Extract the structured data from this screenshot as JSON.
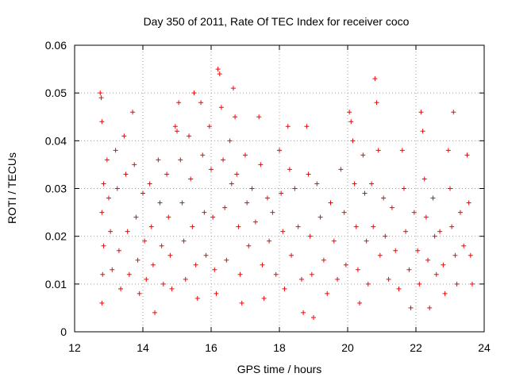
{
  "chart_data": {
    "type": "scatter",
    "title": "Day 350 of 2011, Rate Of TEC Index for receiver coco",
    "xlabel": "GPS time / hours",
    "ylabel": "ROTI / TECUs",
    "xlim": [
      12,
      24
    ],
    "ylim": [
      0,
      0.06
    ],
    "x_ticks": [
      "12",
      "14",
      "16",
      "18",
      "20",
      "22",
      "24"
    ],
    "y_ticks": [
      "0",
      "0.01",
      "0.02",
      "0.03",
      "0.04",
      "0.05",
      "0.06"
    ],
    "grid": true,
    "marker": "plus",
    "color": "#ff0000",
    "series": [
      {
        "points": [
          [
            12.75,
            0.05
          ],
          [
            12.78,
            0.049
          ],
          [
            12.8,
            0.044
          ],
          [
            12.85,
            0.031
          ],
          [
            12.8,
            0.025
          ],
          [
            12.85,
            0.018
          ],
          [
            12.82,
            0.012
          ],
          [
            12.8,
            0.006
          ],
          [
            12.95,
            0.036
          ],
          [
            13.0,
            0.028
          ],
          [
            13.05,
            0.021
          ],
          [
            13.1,
            0.013
          ],
          [
            13.2,
            0.038
          ],
          [
            13.25,
            0.03
          ],
          [
            13.3,
            0.017
          ],
          [
            13.35,
            0.009
          ],
          [
            13.45,
            0.041
          ],
          [
            13.5,
            0.033
          ],
          [
            13.55,
            0.021
          ],
          [
            13.6,
            0.012
          ],
          [
            13.7,
            0.046
          ],
          [
            13.75,
            0.035
          ],
          [
            13.8,
            0.024
          ],
          [
            13.85,
            0.015
          ],
          [
            13.9,
            0.008
          ],
          [
            14.0,
            0.029
          ],
          [
            14.05,
            0.019
          ],
          [
            14.1,
            0.011
          ],
          [
            14.2,
            0.031
          ],
          [
            14.25,
            0.022
          ],
          [
            14.3,
            0.014
          ],
          [
            14.35,
            0.004
          ],
          [
            14.45,
            0.036
          ],
          [
            14.5,
            0.027
          ],
          [
            14.55,
            0.018
          ],
          [
            14.6,
            0.01
          ],
          [
            14.7,
            0.033
          ],
          [
            14.75,
            0.024
          ],
          [
            14.8,
            0.016
          ],
          [
            14.85,
            0.009
          ],
          [
            14.95,
            0.043
          ],
          [
            15.0,
            0.042
          ],
          [
            15.05,
            0.048
          ],
          [
            15.1,
            0.036
          ],
          [
            15.15,
            0.027
          ],
          [
            15.2,
            0.019
          ],
          [
            15.25,
            0.011
          ],
          [
            15.35,
            0.041
          ],
          [
            15.4,
            0.032
          ],
          [
            15.45,
            0.022
          ],
          [
            15.5,
            0.05
          ],
          [
            15.55,
            0.014
          ],
          [
            15.6,
            0.007
          ],
          [
            15.7,
            0.048
          ],
          [
            15.75,
            0.037
          ],
          [
            15.8,
            0.025
          ],
          [
            15.85,
            0.016
          ],
          [
            15.95,
            0.043
          ],
          [
            16.0,
            0.034
          ],
          [
            16.05,
            0.024
          ],
          [
            16.1,
            0.013
          ],
          [
            16.15,
            0.008
          ],
          [
            16.2,
            0.055
          ],
          [
            16.25,
            0.054
          ],
          [
            16.3,
            0.047
          ],
          [
            16.35,
            0.036
          ],
          [
            16.4,
            0.026
          ],
          [
            16.45,
            0.015
          ],
          [
            16.55,
            0.04
          ],
          [
            16.6,
            0.031
          ],
          [
            16.65,
            0.051
          ],
          [
            16.7,
            0.045
          ],
          [
            16.75,
            0.033
          ],
          [
            16.8,
            0.022
          ],
          [
            16.85,
            0.012
          ],
          [
            16.9,
            0.006
          ],
          [
            17.0,
            0.037
          ],
          [
            17.05,
            0.027
          ],
          [
            17.1,
            0.018
          ],
          [
            17.2,
            0.03
          ],
          [
            17.3,
            0.023
          ],
          [
            17.4,
            0.045
          ],
          [
            17.45,
            0.035
          ],
          [
            17.5,
            0.014
          ],
          [
            17.55,
            0.007
          ],
          [
            17.65,
            0.028
          ],
          [
            17.7,
            0.019
          ],
          [
            17.8,
            0.025
          ],
          [
            17.9,
            0.012
          ],
          [
            18.0,
            0.038
          ],
          [
            18.05,
            0.029
          ],
          [
            18.1,
            0.021
          ],
          [
            18.15,
            0.009
          ],
          [
            18.25,
            0.043
          ],
          [
            18.3,
            0.034
          ],
          [
            18.35,
            0.016
          ],
          [
            18.45,
            0.03
          ],
          [
            18.55,
            0.022
          ],
          [
            18.65,
            0.011
          ],
          [
            18.7,
            0.004
          ],
          [
            18.8,
            0.043
          ],
          [
            18.85,
            0.033
          ],
          [
            18.9,
            0.02
          ],
          [
            18.95,
            0.012
          ],
          [
            19.0,
            0.003
          ],
          [
            19.1,
            0.031
          ],
          [
            19.2,
            0.024
          ],
          [
            19.3,
            0.015
          ],
          [
            19.4,
            0.008
          ],
          [
            19.5,
            0.027
          ],
          [
            19.6,
            0.019
          ],
          [
            19.7,
            0.011
          ],
          [
            19.8,
            0.034
          ],
          [
            19.9,
            0.025
          ],
          [
            19.95,
            0.014
          ],
          [
            20.05,
            0.046
          ],
          [
            20.1,
            0.044
          ],
          [
            20.15,
            0.04
          ],
          [
            20.2,
            0.031
          ],
          [
            20.25,
            0.022
          ],
          [
            20.3,
            0.013
          ],
          [
            20.35,
            0.006
          ],
          [
            20.45,
            0.037
          ],
          [
            20.5,
            0.029
          ],
          [
            20.55,
            0.019
          ],
          [
            20.6,
            0.01
          ],
          [
            20.7,
            0.031
          ],
          [
            20.75,
            0.022
          ],
          [
            20.8,
            0.053
          ],
          [
            20.85,
            0.048
          ],
          [
            20.9,
            0.038
          ],
          [
            20.95,
            0.016
          ],
          [
            21.05,
            0.028
          ],
          [
            21.1,
            0.02
          ],
          [
            21.2,
            0.011
          ],
          [
            21.3,
            0.026
          ],
          [
            21.4,
            0.017
          ],
          [
            21.5,
            0.009
          ],
          [
            21.6,
            0.038
          ],
          [
            21.65,
            0.03
          ],
          [
            21.7,
            0.021
          ],
          [
            21.8,
            0.013
          ],
          [
            21.85,
            0.005
          ],
          [
            21.95,
            0.025
          ],
          [
            22.05,
            0.017
          ],
          [
            22.1,
            0.01
          ],
          [
            22.15,
            0.046
          ],
          [
            22.2,
            0.042
          ],
          [
            22.25,
            0.032
          ],
          [
            22.3,
            0.024
          ],
          [
            22.35,
            0.015
          ],
          [
            22.4,
            0.005
          ],
          [
            22.5,
            0.028
          ],
          [
            22.55,
            0.02
          ],
          [
            22.6,
            0.012
          ],
          [
            22.7,
            0.021
          ],
          [
            22.8,
            0.014
          ],
          [
            22.85,
            0.008
          ],
          [
            22.95,
            0.038
          ],
          [
            23.0,
            0.03
          ],
          [
            23.05,
            0.022
          ],
          [
            23.1,
            0.046
          ],
          [
            23.15,
            0.016
          ],
          [
            23.2,
            0.01
          ],
          [
            23.3,
            0.025
          ],
          [
            23.4,
            0.018
          ],
          [
            23.5,
            0.037
          ],
          [
            23.55,
            0.027
          ],
          [
            23.6,
            0.016
          ],
          [
            23.65,
            0.01
          ]
        ]
      }
    ]
  }
}
